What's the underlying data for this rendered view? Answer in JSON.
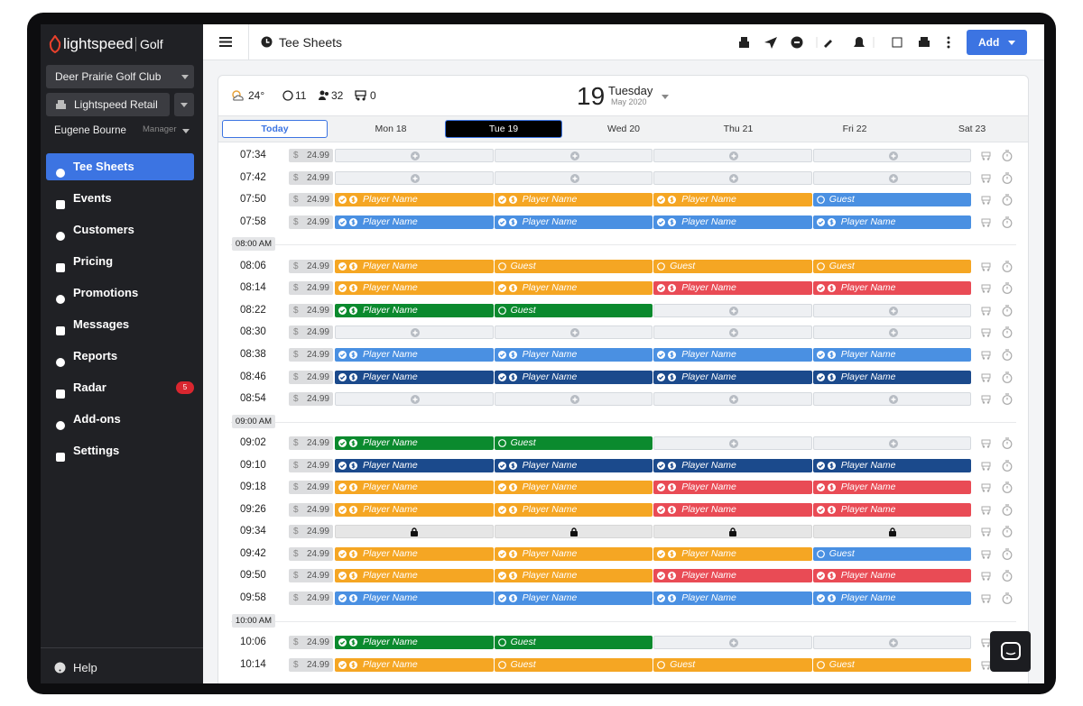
{
  "sidebar": {
    "brand": "lightspeed",
    "product": "Golf",
    "club": "Deer Prairie Golf Club",
    "store": "Lightspeed Retail",
    "user": "Eugene Bourne",
    "role": "Manager",
    "nav": [
      {
        "label": "Tee Sheets",
        "active": true
      },
      {
        "label": "Events"
      },
      {
        "label": "Customers"
      },
      {
        "label": "Pricing"
      },
      {
        "label": "Promotions"
      },
      {
        "label": "Messages"
      },
      {
        "label": "Reports"
      },
      {
        "label": "Radar",
        "badge": "5"
      },
      {
        "label": "Add-ons"
      },
      {
        "label": "Settings"
      }
    ],
    "help": "Help"
  },
  "topbar": {
    "title": "Tee Sheets",
    "add": "Add"
  },
  "weather": {
    "temperature": "24°",
    "players": "11",
    "groups": "32",
    "carts": "0"
  },
  "date": {
    "day": "19",
    "weekday": "Tuesday",
    "month": "May 2020"
  },
  "days": [
    "Today",
    "Mon 18",
    "Tue 19",
    "Wed 20",
    "Thu 21",
    "Fri 22",
    "Sat 23"
  ],
  "selected_day": 2,
  "currency": "$",
  "colors": {
    "orange": "#f5a623",
    "blue": "#4a90e2",
    "navy": "#1b4a8c",
    "red": "#e94b55",
    "green": "#0b8a2e"
  },
  "rows": [
    {
      "time": "07:34",
      "price": "24.99",
      "slots": [
        {
          "state": "open"
        },
        {
          "state": "open"
        },
        {
          "state": "open"
        },
        {
          "state": "open"
        }
      ]
    },
    {
      "time": "07:42",
      "price": "24.99",
      "slots": [
        {
          "state": "open"
        },
        {
          "state": "open"
        },
        {
          "state": "open"
        },
        {
          "state": "open"
        }
      ]
    },
    {
      "time": "07:50",
      "price": "24.99",
      "slots": [
        {
          "label": "Player Name",
          "color": "orange",
          "paid": true
        },
        {
          "label": "Player Name",
          "color": "orange",
          "paid": true
        },
        {
          "label": "Player Name",
          "color": "orange",
          "paid": true
        },
        {
          "label": "Guest",
          "color": "blue",
          "paid": false
        }
      ]
    },
    {
      "time": "07:58",
      "price": "24.99",
      "slots": [
        {
          "label": "Player Name",
          "color": "blue",
          "paid": true
        },
        {
          "label": "Player Name",
          "color": "blue",
          "paid": true
        },
        {
          "label": "Player Name",
          "color": "blue",
          "paid": true
        },
        {
          "label": "Player Name",
          "color": "blue",
          "paid": true
        }
      ]
    },
    {
      "hour": "08:00 AM"
    },
    {
      "time": "08:06",
      "price": "24.99",
      "slots": [
        {
          "label": "Player Name",
          "color": "orange",
          "paid": true
        },
        {
          "label": "Guest",
          "color": "orange",
          "paid": false
        },
        {
          "label": "Guest",
          "color": "orange",
          "paid": false
        },
        {
          "label": "Guest",
          "color": "orange",
          "paid": false
        }
      ]
    },
    {
      "time": "08:14",
      "price": "24.99",
      "slots": [
        {
          "label": "Player Name",
          "color": "orange",
          "paid": true
        },
        {
          "label": "Player Name",
          "color": "orange",
          "paid": true
        },
        {
          "label": "Player Name",
          "color": "red",
          "paid": true
        },
        {
          "label": "Player Name",
          "color": "red",
          "paid": true
        }
      ]
    },
    {
      "time": "08:22",
      "price": "24.99",
      "slots": [
        {
          "label": "Player Name",
          "color": "green",
          "paid": true
        },
        {
          "label": "Guest",
          "color": "green",
          "paid": false
        },
        {
          "state": "open"
        },
        {
          "state": "open"
        }
      ]
    },
    {
      "time": "08:30",
      "price": "24.99",
      "slots": [
        {
          "state": "open"
        },
        {
          "state": "open"
        },
        {
          "state": "open"
        },
        {
          "state": "open"
        }
      ]
    },
    {
      "time": "08:38",
      "price": "24.99",
      "slots": [
        {
          "label": "Player Name",
          "color": "blue",
          "paid": true
        },
        {
          "label": "Player Name",
          "color": "blue",
          "paid": true
        },
        {
          "label": "Player Name",
          "color": "blue",
          "paid": true
        },
        {
          "label": "Player Name",
          "color": "blue",
          "paid": true
        }
      ]
    },
    {
      "time": "08:46",
      "price": "24.99",
      "slots": [
        {
          "label": "Player Name",
          "color": "navy",
          "paid": true
        },
        {
          "label": "Player Name",
          "color": "navy",
          "paid": true
        },
        {
          "label": "Player Name",
          "color": "navy",
          "paid": true
        },
        {
          "label": "Player Name",
          "color": "navy",
          "paid": true
        }
      ]
    },
    {
      "time": "08:54",
      "price": "24.99",
      "slots": [
        {
          "state": "open"
        },
        {
          "state": "open"
        },
        {
          "state": "open"
        },
        {
          "state": "open"
        }
      ]
    },
    {
      "hour": "09:00 AM"
    },
    {
      "time": "09:02",
      "price": "24.99",
      "slots": [
        {
          "label": "Player Name",
          "color": "green",
          "paid": true
        },
        {
          "label": "Guest",
          "color": "green",
          "paid": false
        },
        {
          "state": "open"
        },
        {
          "state": "open"
        }
      ]
    },
    {
      "time": "09:10",
      "price": "24.99",
      "slots": [
        {
          "label": "Player Name",
          "color": "navy",
          "paid": true
        },
        {
          "label": "Player Name",
          "color": "navy",
          "paid": true
        },
        {
          "label": "Player Name",
          "color": "navy",
          "paid": true
        },
        {
          "label": "Player Name",
          "color": "navy",
          "paid": true
        }
      ]
    },
    {
      "time": "09:18",
      "price": "24.99",
      "slots": [
        {
          "label": "Player Name",
          "color": "orange",
          "paid": true
        },
        {
          "label": "Player Name",
          "color": "orange",
          "paid": true
        },
        {
          "label": "Player Name",
          "color": "red",
          "paid": true
        },
        {
          "label": "Player Name",
          "color": "red",
          "paid": true
        }
      ]
    },
    {
      "time": "09:26",
      "price": "24.99",
      "slots": [
        {
          "label": "Player Name",
          "color": "orange",
          "paid": true
        },
        {
          "label": "Player Name",
          "color": "orange",
          "paid": true
        },
        {
          "label": "Player Name",
          "color": "red",
          "paid": true
        },
        {
          "label": "Player Name",
          "color": "red",
          "paid": true
        }
      ]
    },
    {
      "time": "09:34",
      "price": "24.99",
      "slots": [
        {
          "state": "locked"
        },
        {
          "state": "locked"
        },
        {
          "state": "locked"
        },
        {
          "state": "locked"
        }
      ]
    },
    {
      "time": "09:42",
      "price": "24.99",
      "slots": [
        {
          "label": "Player Name",
          "color": "orange",
          "paid": true
        },
        {
          "label": "Player Name",
          "color": "orange",
          "paid": true
        },
        {
          "label": "Player Name",
          "color": "orange",
          "paid": true
        },
        {
          "label": "Guest",
          "color": "blue",
          "paid": false
        }
      ]
    },
    {
      "time": "09:50",
      "price": "24.99",
      "slots": [
        {
          "label": "Player Name",
          "color": "orange",
          "paid": true
        },
        {
          "label": "Player Name",
          "color": "orange",
          "paid": true
        },
        {
          "label": "Player Name",
          "color": "red",
          "paid": true
        },
        {
          "label": "Player Name",
          "color": "red",
          "paid": true
        }
      ]
    },
    {
      "time": "09:58",
      "price": "24.99",
      "slots": [
        {
          "label": "Player Name",
          "color": "blue",
          "paid": true
        },
        {
          "label": "Player Name",
          "color": "blue",
          "paid": true
        },
        {
          "label": "Player Name",
          "color": "blue",
          "paid": true
        },
        {
          "label": "Player Name",
          "color": "blue",
          "paid": true
        }
      ]
    },
    {
      "hour": "10:00 AM"
    },
    {
      "time": "10:06",
      "price": "24.99",
      "slots": [
        {
          "label": "Player Name",
          "color": "green",
          "paid": true
        },
        {
          "label": "Guest",
          "color": "green",
          "paid": false
        },
        {
          "state": "open"
        },
        {
          "state": "open"
        }
      ]
    },
    {
      "time": "10:14",
      "price": "24.99",
      "slots": [
        {
          "label": "Player Name",
          "color": "orange",
          "paid": true
        },
        {
          "label": "Guest",
          "color": "orange",
          "paid": false
        },
        {
          "label": "Guest",
          "color": "orange",
          "paid": false
        },
        {
          "label": "Guest",
          "color": "orange",
          "paid": false
        }
      ]
    }
  ]
}
